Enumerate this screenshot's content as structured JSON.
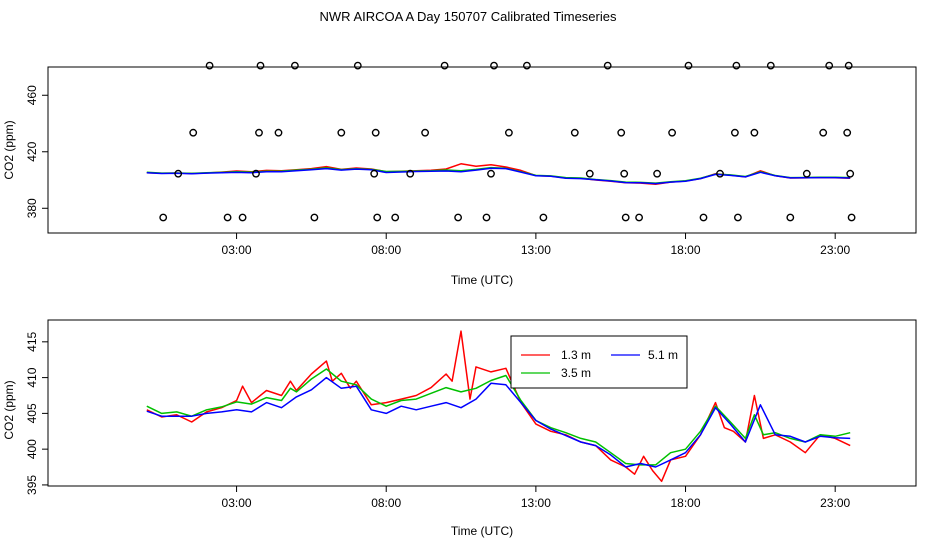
{
  "title": "NWR AIRCOA A  Day 150707  Calibrated Timeseries",
  "chart_data": [
    {
      "type": "line",
      "panel": "top",
      "xlabel": "Time (UTC)",
      "ylabel": "CO2 (ppm)",
      "xlim": [
        -3.3,
        25.7
      ],
      "ylim": [
        362.5,
        480
      ],
      "xticks": [
        3,
        8,
        13,
        18,
        23
      ],
      "xtick_labels": [
        "03:00",
        "08:00",
        "13:00",
        "18:00",
        "23:00"
      ],
      "yticks": [
        380,
        420,
        460
      ],
      "ytick_labels": [
        "380",
        "420",
        "460"
      ],
      "lines": [
        {
          "name": "1.3 m",
          "color": "#ff0000",
          "x": [
            0,
            0.5,
            1,
            1.5,
            2,
            2.5,
            3,
            3.5,
            4,
            4.5,
            5,
            5.5,
            6,
            6.5,
            7,
            7.5,
            8,
            8.5,
            9,
            9.5,
            10,
            10.5,
            11,
            11.5,
            12,
            12.5,
            13,
            13.5,
            14,
            14.5,
            15,
            15.5,
            16,
            16.5,
            17,
            17.5,
            18,
            18.5,
            19,
            19.5,
            20,
            20.5,
            21,
            21.5,
            22,
            22.5,
            23,
            23.5
          ],
          "y": [
            405.2,
            404.8,
            404.9,
            404.6,
            405.0,
            405.6,
            406.4,
            405.9,
            406.8,
            406.5,
            407.3,
            408.1,
            409.5,
            407.5,
            408.5,
            407.8,
            405.9,
            406.2,
            406.6,
            406.9,
            407.8,
            411.5,
            409.8,
            410.8,
            409.2,
            406.8,
            403.1,
            402.8,
            401.4,
            401.2,
            400.0,
            399.1,
            398.0,
            397.8,
            397.0,
            398.5,
            399.3,
            401.0,
            404.5,
            403.5,
            402.2,
            406.5,
            403.0,
            401.4,
            401.5,
            401.8,
            401.6,
            401.2
          ]
        },
        {
          "name": "3.5 m",
          "color": "#00c000",
          "x": [
            0,
            0.5,
            1,
            1.5,
            2,
            2.5,
            3,
            3.5,
            4,
            4.5,
            5,
            5.5,
            6,
            6.5,
            7,
            7.5,
            8,
            8.5,
            9,
            9.5,
            10,
            10.5,
            11,
            11.5,
            12,
            12.5,
            13,
            13.5,
            14,
            14.5,
            15,
            15.5,
            16,
            16.5,
            17,
            17.5,
            18,
            18.5,
            19,
            19.5,
            20,
            20.5,
            21,
            21.5,
            22,
            22.5,
            23,
            23.5
          ],
          "y": [
            405.5,
            404.9,
            405.0,
            404.7,
            405.1,
            405.4,
            405.8,
            405.6,
            406.2,
            406.3,
            407.0,
            407.6,
            408.6,
            407.4,
            408.0,
            407.5,
            406.0,
            406.1,
            406.4,
            406.6,
            407.1,
            406.6,
            407.5,
            408.8,
            408.3,
            405.9,
            403.3,
            402.9,
            401.7,
            401.4,
            400.4,
            399.6,
            398.5,
            398.3,
            397.8,
            398.8,
            399.5,
            401.3,
            404.2,
            403.6,
            402.5,
            405.8,
            403.2,
            401.7,
            401.8,
            402.0,
            401.9,
            401.7
          ]
        },
        {
          "name": "5.1 m",
          "color": "#0000ff",
          "x": [
            0,
            0.5,
            1,
            1.5,
            2,
            2.5,
            3,
            3.5,
            4,
            4.5,
            5,
            5.5,
            6,
            6.5,
            7,
            7.5,
            8,
            8.5,
            9,
            9.5,
            10,
            10.5,
            11,
            11.5,
            12,
            12.5,
            13,
            13.5,
            14,
            14.5,
            15,
            15.5,
            16,
            16.5,
            17,
            17.5,
            18,
            18.5,
            19,
            19.5,
            20,
            20.5,
            21,
            21.5,
            22,
            22.5,
            23,
            23.5
          ],
          "y": [
            405.1,
            404.6,
            404.8,
            404.5,
            404.9,
            405.1,
            405.4,
            405.2,
            405.8,
            405.9,
            406.5,
            407.2,
            408.1,
            407.0,
            407.7,
            407.2,
            405.3,
            405.7,
            406.0,
            406.2,
            406.4,
            405.9,
            407.0,
            408.4,
            408.1,
            405.6,
            403.0,
            402.6,
            401.3,
            401.0,
            400.2,
            399.3,
            398.2,
            398.0,
            397.5,
            398.5,
            399.2,
            401.0,
            404.0,
            403.3,
            402.2,
            405.5,
            403.0,
            401.5,
            401.6,
            401.7,
            401.7,
            401.4
          ]
        }
      ],
      "calibration_points": {
        "x": [
          0.55,
          1.05,
          1.55,
          2.1,
          2.7,
          3.2,
          3.65,
          3.75,
          3.8,
          4.4,
          4.95,
          5.6,
          6.5,
          7.05,
          7.6,
          7.65,
          7.7,
          8.3,
          8.8,
          9.3,
          9.95,
          10.4,
          11.35,
          11.5,
          11.6,
          12.1,
          12.7,
          13.25,
          14.3,
          14.8,
          15.4,
          15.85,
          15.95,
          16.0,
          16.45,
          17.05,
          17.55,
          18.1,
          18.6,
          19.15,
          19.65,
          19.7,
          19.75,
          20.3,
          20.85,
          21.5,
          22.05,
          22.6,
          22.8,
          23.4,
          23.45,
          23.5,
          23.55
        ],
        "y": [
          373.5,
          404.5,
          433.5,
          481,
          373.5,
          373.5,
          404.5,
          433.5,
          481,
          433.5,
          481,
          373.5,
          433.5,
          481,
          404.5,
          433.5,
          373.5,
          373.5,
          404.5,
          433.5,
          481,
          373.5,
          373.5,
          404.5,
          481,
          433.5,
          481,
          373.5,
          433.5,
          404.5,
          481,
          433.5,
          404.5,
          373.5,
          373.5,
          404.5,
          433.5,
          481,
          373.5,
          404.5,
          433.5,
          481,
          373.5,
          433.5,
          481,
          373.5,
          404.5,
          433.5,
          481,
          433.5,
          481,
          404.5,
          373.5
        ]
      }
    },
    {
      "type": "line",
      "panel": "bottom",
      "xlabel": "Time (UTC)",
      "ylabel": "CO2 (ppm)",
      "xlim": [
        -3.3,
        25.7
      ],
      "ylim": [
        394.85,
        418.05
      ],
      "xticks": [
        3,
        8,
        13,
        18,
        23
      ],
      "xtick_labels": [
        "03:00",
        "08:00",
        "13:00",
        "18:00",
        "23:00"
      ],
      "yticks": [
        395,
        400,
        405,
        410,
        415
      ],
      "ytick_labels": [
        "395",
        "400",
        "405",
        "410",
        "415"
      ],
      "legend": {
        "position": "top-center",
        "entries": [
          "1.3 m",
          "3.5 m",
          "5.1 m"
        ]
      },
      "series": [
        {
          "name": "1.3 m",
          "color": "#ff0000",
          "x": [
            0,
            0.5,
            1,
            1.5,
            2,
            2.5,
            3,
            3.2,
            3.5,
            4,
            4.5,
            4.8,
            5,
            5.5,
            6,
            6.2,
            6.5,
            6.8,
            7,
            7.5,
            8,
            8.5,
            9,
            9.5,
            10,
            10.2,
            10.5,
            10.8,
            11,
            11.5,
            12,
            12.5,
            13,
            13.5,
            14,
            14.5,
            15,
            15.5,
            16,
            16.3,
            16.6,
            16.9,
            17.2,
            17.5,
            18,
            18.5,
            19,
            19.3,
            19.6,
            20,
            20.3,
            20.6,
            21,
            21.5,
            22,
            22.5,
            23,
            23.5
          ],
          "y": [
            405.5,
            404.5,
            404.8,
            403.8,
            405.2,
            405.8,
            406.8,
            408.8,
            406.5,
            408.2,
            407.5,
            409.5,
            408.2,
            410.5,
            412.3,
            409.5,
            410.6,
            408.5,
            409.5,
            406.2,
            406.5,
            407.0,
            407.5,
            408.6,
            410.5,
            409.5,
            416.5,
            407.0,
            411.5,
            410.8,
            411.3,
            406.5,
            403.5,
            402.5,
            402.0,
            401.0,
            400.5,
            398.5,
            397.5,
            396.5,
            399.0,
            397.0,
            395.5,
            398.5,
            399.0,
            402.0,
            406.5,
            403.0,
            402.5,
            401.0,
            407.5,
            401.5,
            402.0,
            401.0,
            399.5,
            402.0,
            401.5,
            400.5
          ]
        },
        {
          "name": "3.5 m",
          "color": "#00c000",
          "x": [
            0,
            0.5,
            1,
            1.5,
            2,
            2.5,
            3,
            3.5,
            4,
            4.5,
            4.8,
            5,
            5.5,
            6,
            6.5,
            7,
            7.5,
            8,
            8.5,
            9,
            9.5,
            10,
            10.5,
            11,
            11.5,
            12,
            12.5,
            13,
            13.5,
            14,
            14.5,
            15,
            15.5,
            16,
            16.5,
            17,
            17.5,
            18,
            18.5,
            19,
            19.5,
            20,
            20.3,
            20.6,
            21,
            21.5,
            22,
            22.5,
            23,
            23.5
          ],
          "y": [
            406.0,
            405.0,
            405.2,
            404.6,
            405.5,
            405.9,
            406.6,
            406.3,
            407.2,
            406.8,
            408.5,
            408.0,
            409.8,
            411.2,
            409.5,
            409.0,
            407.0,
            406.0,
            406.8,
            407.0,
            407.8,
            408.6,
            408.0,
            408.5,
            409.6,
            410.3,
            406.8,
            404.0,
            403.0,
            402.3,
            401.5,
            401.0,
            399.5,
            398.0,
            397.8,
            397.8,
            399.5,
            400.0,
            402.5,
            406.0,
            403.8,
            401.5,
            404.8,
            402.0,
            402.3,
            401.5,
            401.0,
            402.0,
            401.8,
            402.3
          ]
        },
        {
          "name": "5.1 m",
          "color": "#0000ff",
          "x": [
            0,
            0.5,
            1,
            1.5,
            2,
            2.5,
            3,
            3.5,
            4,
            4.5,
            5,
            5.5,
            6,
            6.5,
            7,
            7.5,
            8,
            8.5,
            9,
            9.5,
            10,
            10.5,
            11,
            11.5,
            12,
            12.5,
            13,
            13.5,
            14,
            14.5,
            15,
            15.5,
            16,
            16.5,
            17,
            17.5,
            18,
            18.5,
            19,
            19.5,
            20,
            20.5,
            21,
            21.5,
            22,
            22.5,
            23,
            23.5
          ],
          "y": [
            405.3,
            404.6,
            404.6,
            404.6,
            405.0,
            405.2,
            405.5,
            405.2,
            406.5,
            405.8,
            407.3,
            408.3,
            410.0,
            408.5,
            408.8,
            405.5,
            405.0,
            406.0,
            405.5,
            406.0,
            406.5,
            405.8,
            407.0,
            409.2,
            409.0,
            406.5,
            404.0,
            402.8,
            401.9,
            401.0,
            400.5,
            399.2,
            397.5,
            398.0,
            397.5,
            398.5,
            399.5,
            402.0,
            405.8,
            403.5,
            401.0,
            406.2,
            402.0,
            401.8,
            401.0,
            401.8,
            401.6,
            401.5
          ]
        }
      ]
    }
  ]
}
